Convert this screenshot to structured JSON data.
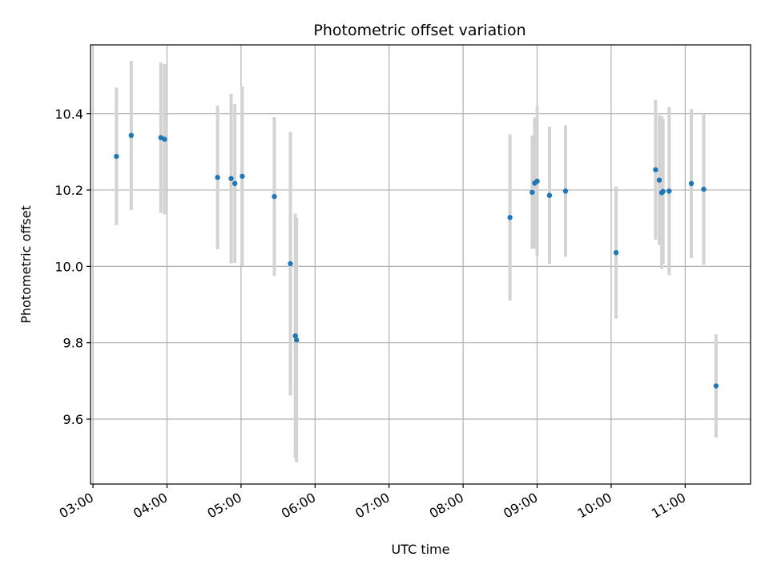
{
  "chart_data": {
    "type": "scatter",
    "title": "Photometric offset variation",
    "xlabel": "UTC time",
    "ylabel": "Photometric offset",
    "xlim": [
      "02:58",
      "11:53"
    ],
    "ylim": [
      9.43,
      10.58
    ],
    "x_ticks": [
      "03:00",
      "04:00",
      "05:00",
      "06:00",
      "07:00",
      "08:00",
      "09:00",
      "10:00",
      "11:00"
    ],
    "y_ticks": [
      9.6,
      9.8,
      10.0,
      10.2,
      10.4
    ],
    "y_tick_labels": [
      "9.6",
      "9.8",
      "10.0",
      "10.2",
      "10.4"
    ],
    "grid": true,
    "marker_color": "#1f77b4",
    "errorbar_color": "#d3d3d3",
    "points": [
      {
        "t": "03:19",
        "y": 10.288,
        "err": 0.18
      },
      {
        "t": "03:31",
        "y": 10.343,
        "err": 0.195
      },
      {
        "t": "03:55",
        "y": 10.337,
        "err": 0.197
      },
      {
        "t": "03:58",
        "y": 10.333,
        "err": 0.197
      },
      {
        "t": "04:41",
        "y": 10.233,
        "err": 0.188
      },
      {
        "t": "04:52",
        "y": 10.23,
        "err": 0.222
      },
      {
        "t": "04:55",
        "y": 10.217,
        "err": 0.208
      },
      {
        "t": "05:01",
        "y": 10.236,
        "err": 0.235
      },
      {
        "t": "05:27",
        "y": 10.183,
        "err": 0.208
      },
      {
        "t": "05:40",
        "y": 10.007,
        "err": 0.345
      },
      {
        "t": "05:44",
        "y": 9.818,
        "err": 0.32
      },
      {
        "t": "05:45",
        "y": 9.807,
        "err": 0.32
      },
      {
        "t": "08:38",
        "y": 10.128,
        "err": 0.218
      },
      {
        "t": "08:56",
        "y": 10.194,
        "err": 0.148
      },
      {
        "t": "08:58",
        "y": 10.218,
        "err": 0.172
      },
      {
        "t": "09:00",
        "y": 10.223,
        "err": 0.197
      },
      {
        "t": "09:10",
        "y": 10.186,
        "err": 0.18
      },
      {
        "t": "09:23",
        "y": 10.197,
        "err": 0.172
      },
      {
        "t": "10:04",
        "y": 10.036,
        "err": 0.173
      },
      {
        "t": "10:36",
        "y": 10.253,
        "err": 0.183
      },
      {
        "t": "10:39",
        "y": 10.226,
        "err": 0.17
      },
      {
        "t": "10:41",
        "y": 10.193,
        "err": 0.2
      },
      {
        "t": "10:42",
        "y": 10.196,
        "err": 0.19
      },
      {
        "t": "10:47",
        "y": 10.197,
        "err": 0.22
      },
      {
        "t": "11:05",
        "y": 10.217,
        "err": 0.195
      },
      {
        "t": "11:15",
        "y": 10.202,
        "err": 0.198
      },
      {
        "t": "11:25",
        "y": 9.687,
        "err": 0.135
      }
    ]
  }
}
